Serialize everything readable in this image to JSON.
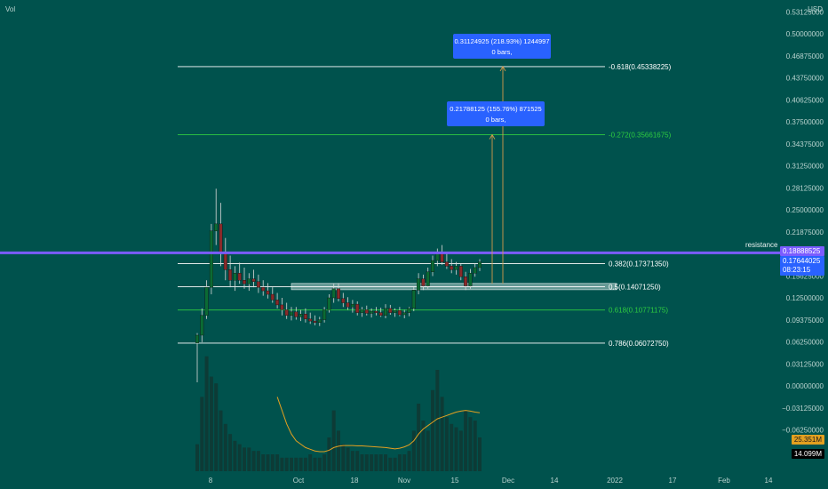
{
  "header": {
    "volume_label": "Vol",
    "currency": "USD"
  },
  "price_axis": {
    "ticks": [
      "0.53125000",
      "0.50000000",
      "0.46875000",
      "0.43750000",
      "0.40625000",
      "0.37500000",
      "0.34375000",
      "0.31250000",
      "0.28125000",
      "0.25000000",
      "0.21875000",
      "0.15625000",
      "0.12500000",
      "0.09375000",
      "0.06250000",
      "0.03125000",
      "0.00000000",
      "−0.03125000",
      "−0.06250000"
    ],
    "ticks_values": [
      0.53125,
      0.5,
      0.46875,
      0.4375,
      0.40625,
      0.375,
      0.34375,
      0.3125,
      0.28125,
      0.25,
      0.21875,
      0.15625,
      0.125,
      0.09375,
      0.0625,
      0.03125,
      0,
      -0.03125,
      -0.0625
    ]
  },
  "time_axis": {
    "labels": [
      "8",
      "Oct",
      "18",
      "Nov",
      "15",
      "Dec",
      "14",
      "2022",
      "17",
      "Feb",
      "14"
    ]
  },
  "fib_levels": [
    {
      "label": "-0.618(0.45338225)",
      "value": 0.45338225,
      "color": "#ffffff"
    },
    {
      "label": "-0.272(0.35661675)",
      "value": 0.35661675,
      "color": "#2ecc40"
    },
    {
      "label": "0.382(0.17371350)",
      "value": 0.1737135,
      "color": "#ffffff"
    },
    {
      "label": "0.5(0.14071250)",
      "value": 0.1407125,
      "color": "#ffffff"
    },
    {
      "label": "0.618(0.10771175)",
      "value": 0.10771175,
      "color": "#2ecc40"
    },
    {
      "label": "0.786(0.06072750)",
      "value": 0.0607275,
      "color": "#ffffff"
    }
  ],
  "resistance": {
    "label": "resistance",
    "price_tag": "0.18888525",
    "value": 0.18888525,
    "color": "#7b5cff"
  },
  "current_price": {
    "price": "0.17644025",
    "countdown": "08:23:15",
    "value": 0.17644025,
    "color": "#2962ff"
  },
  "volume_tags": {
    "ma": "25.351M",
    "volume": "14.099M"
  },
  "measure_boxes": [
    {
      "line1": "0.31124925 (218.93%) 1244997",
      "line2": "0 bars,",
      "target": 0.45338225
    },
    {
      "line1": "0.21788125 (155.76%) 871525",
      "line2": "0 bars,",
      "target": 0.35661675
    }
  ],
  "zone": {
    "low": 0.1365,
    "high": 0.1455
  },
  "colors": {
    "background": "#00524d",
    "up": "#0b6b33",
    "down": "#8a2a2a",
    "wick": "#d9d9d9",
    "volume": "#0d3b36",
    "vol_ma": "#e3a020",
    "measure_line": "#d59b4a"
  },
  "chart_data": {
    "type": "candlestick",
    "candles": [
      [
        0.061,
        0.075,
        0.005,
        0.072
      ],
      [
        0.072,
        0.11,
        0.062,
        0.1
      ],
      [
        0.1,
        0.15,
        0.095,
        0.14
      ],
      [
        0.14,
        0.23,
        0.13,
        0.22
      ],
      [
        0.22,
        0.28,
        0.2,
        0.23
      ],
      [
        0.23,
        0.26,
        0.17,
        0.19
      ],
      [
        0.19,
        0.21,
        0.15,
        0.165
      ],
      [
        0.165,
        0.185,
        0.14,
        0.15
      ],
      [
        0.15,
        0.17,
        0.135,
        0.16
      ],
      [
        0.16,
        0.175,
        0.145,
        0.15
      ],
      [
        0.15,
        0.168,
        0.138,
        0.145
      ],
      [
        0.145,
        0.16,
        0.135,
        0.152
      ],
      [
        0.152,
        0.165,
        0.14,
        0.148
      ],
      [
        0.148,
        0.158,
        0.132,
        0.14
      ],
      [
        0.14,
        0.15,
        0.128,
        0.135
      ],
      [
        0.135,
        0.146,
        0.124,
        0.13
      ],
      [
        0.13,
        0.14,
        0.118,
        0.122
      ],
      [
        0.122,
        0.132,
        0.11,
        0.115
      ],
      [
        0.115,
        0.125,
        0.1,
        0.108
      ],
      [
        0.108,
        0.118,
        0.095,
        0.1
      ],
      [
        0.1,
        0.112,
        0.093,
        0.105
      ],
      [
        0.105,
        0.112,
        0.094,
        0.098
      ],
      [
        0.098,
        0.108,
        0.092,
        0.102
      ],
      [
        0.102,
        0.11,
        0.09,
        0.095
      ],
      [
        0.095,
        0.104,
        0.088,
        0.092
      ],
      [
        0.092,
        0.1,
        0.086,
        0.09
      ],
      [
        0.09,
        0.098,
        0.085,
        0.094
      ],
      [
        0.094,
        0.112,
        0.09,
        0.108
      ],
      [
        0.108,
        0.13,
        0.104,
        0.125
      ],
      [
        0.125,
        0.145,
        0.118,
        0.138
      ],
      [
        0.138,
        0.146,
        0.12,
        0.124
      ],
      [
        0.124,
        0.132,
        0.112,
        0.118
      ],
      [
        0.118,
        0.126,
        0.108,
        0.112
      ],
      [
        0.112,
        0.122,
        0.104,
        0.116
      ],
      [
        0.116,
        0.12,
        0.1,
        0.104
      ],
      [
        0.104,
        0.112,
        0.098,
        0.108
      ],
      [
        0.108,
        0.114,
        0.1,
        0.103
      ],
      [
        0.103,
        0.11,
        0.097,
        0.106
      ],
      [
        0.106,
        0.112,
        0.1,
        0.104
      ],
      [
        0.104,
        0.111,
        0.098,
        0.1
      ],
      [
        0.1,
        0.116,
        0.096,
        0.11
      ],
      [
        0.11,
        0.115,
        0.101,
        0.104
      ],
      [
        0.104,
        0.11,
        0.098,
        0.107
      ],
      [
        0.107,
        0.112,
        0.099,
        0.101
      ],
      [
        0.101,
        0.108,
        0.096,
        0.104
      ],
      [
        0.104,
        0.112,
        0.099,
        0.11
      ],
      [
        0.11,
        0.14,
        0.106,
        0.136
      ],
      [
        0.136,
        0.16,
        0.13,
        0.152
      ],
      [
        0.152,
        0.158,
        0.136,
        0.142
      ],
      [
        0.142,
        0.168,
        0.138,
        0.162
      ],
      [
        0.162,
        0.185,
        0.156,
        0.178
      ],
      [
        0.178,
        0.195,
        0.17,
        0.19
      ],
      [
        0.19,
        0.2,
        0.172,
        0.176
      ],
      [
        0.176,
        0.188,
        0.166,
        0.17
      ],
      [
        0.17,
        0.18,
        0.16,
        0.165
      ],
      [
        0.165,
        0.176,
        0.158,
        0.17
      ],
      [
        0.17,
        0.174,
        0.15,
        0.155
      ],
      [
        0.155,
        0.162,
        0.136,
        0.142
      ],
      [
        0.142,
        0.166,
        0.138,
        0.16
      ],
      [
        0.16,
        0.174,
        0.155,
        0.168
      ],
      [
        0.168,
        0.18,
        0.163,
        0.176
      ]
    ],
    "volume": [
      8,
      22,
      34,
      28,
      26,
      18,
      14,
      11,
      9,
      8,
      7,
      7,
      6,
      6,
      5,
      5,
      5,
      5,
      4,
      4,
      4,
      4,
      4,
      4,
      5,
      4,
      4,
      5,
      10,
      18,
      12,
      8,
      7,
      6,
      6,
      5,
      5,
      5,
      5,
      5,
      5,
      4,
      4,
      5,
      5,
      6,
      12,
      20,
      15,
      12,
      24,
      30,
      22,
      16,
      14,
      13,
      12,
      18,
      16,
      15,
      10
    ],
    "volume_ma": [
      null,
      null,
      null,
      null,
      null,
      null,
      null,
      null,
      null,
      null,
      null,
      null,
      null,
      null,
      null,
      null,
      null,
      22,
      18,
      14,
      11,
      9,
      8,
      7,
      6.5,
      6,
      5.8,
      5.8,
      6.2,
      7,
      7.4,
      7.6,
      7.6,
      7.6,
      7.5,
      7.5,
      7.4,
      7.3,
      7.2,
      7.1,
      7.0,
      6.8,
      6.6,
      6.8,
      7.2,
      7.8,
      9,
      11,
      12.5,
      13.5,
      14.5,
      15.5,
      16,
      16.5,
      17,
      17.5,
      17.8,
      18,
      17.8,
      17.5,
      17.3
    ]
  }
}
